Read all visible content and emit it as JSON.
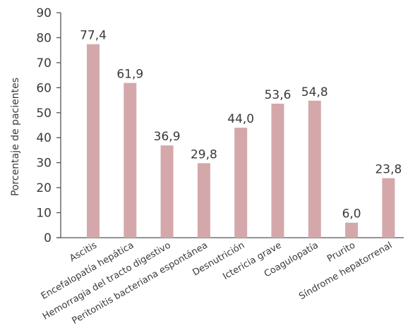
{
  "chart_data": {
    "type": "bar",
    "categories": [
      "Ascitis",
      "Encefalopatía hepática",
      "Hemorragia del tracto digestivo",
      "Peritonitis bacteriana espontánea",
      "Desnutrición",
      "Ictericia grave",
      "Coagulopatía",
      "Prurito",
      "Síndrome hepatorrenal"
    ],
    "values": [
      77.4,
      61.9,
      36.9,
      29.8,
      44.0,
      53.6,
      54.8,
      6.0,
      23.8
    ],
    "data_labels": [
      "77,4",
      "61,9",
      "36,9",
      "29,8",
      "44,0",
      "53,6",
      "54,8",
      "6,0",
      "23,8"
    ],
    "title": "",
    "xlabel": "",
    "ylabel": "Porcentaje de pacientes",
    "ylim": [
      0,
      90
    ],
    "yticks": [
      0,
      10,
      20,
      30,
      40,
      50,
      60,
      70,
      80,
      90
    ],
    "grid": false,
    "bar_color": "#d4a8ab"
  }
}
